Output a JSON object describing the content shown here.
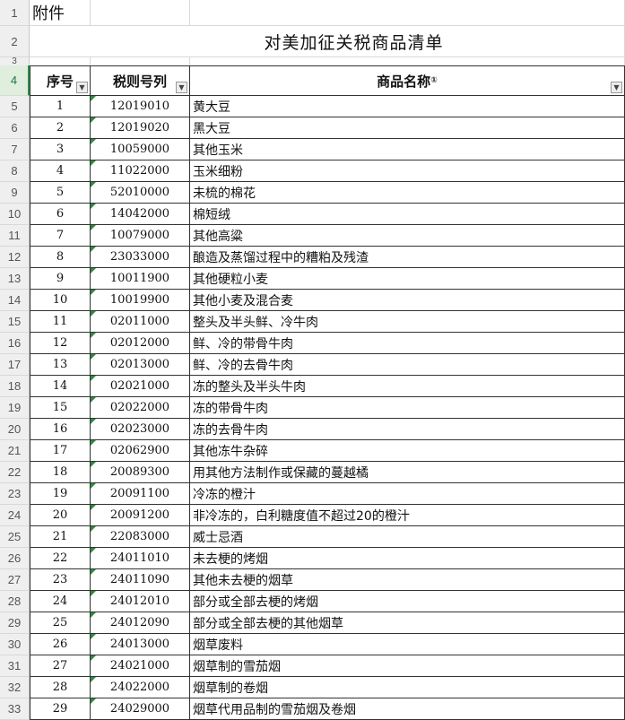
{
  "sheet": {
    "attachment_label": "附件",
    "title": "对美加征关税商品清单",
    "headers": {
      "seq": "序号",
      "code": "税则号列",
      "name": "商品名称",
      "footnote": "①"
    },
    "row_numbers": [
      "1",
      "2",
      "3",
      "4",
      "5",
      "6",
      "7",
      "8",
      "9",
      "10",
      "11",
      "12",
      "13",
      "14",
      "15",
      "16",
      "17",
      "18",
      "19",
      "20",
      "21",
      "22",
      "23",
      "24",
      "25",
      "26",
      "27",
      "28",
      "29",
      "30",
      "31",
      "32",
      "33"
    ],
    "rows": [
      {
        "seq": "1",
        "code": "12019010",
        "name": "黄大豆"
      },
      {
        "seq": "2",
        "code": "12019020",
        "name": "黑大豆"
      },
      {
        "seq": "3",
        "code": "10059000",
        "name": "其他玉米"
      },
      {
        "seq": "4",
        "code": "11022000",
        "name": "玉米细粉"
      },
      {
        "seq": "5",
        "code": "52010000",
        "name": "未梳的棉花"
      },
      {
        "seq": "6",
        "code": "14042000",
        "name": "棉短绒"
      },
      {
        "seq": "7",
        "code": "10079000",
        "name": "其他高粱"
      },
      {
        "seq": "8",
        "code": "23033000",
        "name": "酿造及蒸馏过程中的糟粕及残渣"
      },
      {
        "seq": "9",
        "code": "10011900",
        "name": "其他硬粒小麦"
      },
      {
        "seq": "10",
        "code": "10019900",
        "name": "其他小麦及混合麦"
      },
      {
        "seq": "11",
        "code": "02011000",
        "name": "整头及半头鲜、冷牛肉"
      },
      {
        "seq": "12",
        "code": "02012000",
        "name": "鲜、冷的带骨牛肉"
      },
      {
        "seq": "13",
        "code": "02013000",
        "name": "鲜、冷的去骨牛肉"
      },
      {
        "seq": "14",
        "code": "02021000",
        "name": "冻的整头及半头牛肉"
      },
      {
        "seq": "15",
        "code": "02022000",
        "name": "冻的带骨牛肉"
      },
      {
        "seq": "16",
        "code": "02023000",
        "name": "冻的去骨牛肉"
      },
      {
        "seq": "17",
        "code": "02062900",
        "name": "其他冻牛杂碎"
      },
      {
        "seq": "18",
        "code": "20089300",
        "name": "用其他方法制作或保藏的蔓越橘"
      },
      {
        "seq": "19",
        "code": "20091100",
        "name": "冷冻的橙汁"
      },
      {
        "seq": "20",
        "code": "20091200",
        "name": "非冷冻的，白利糖度值不超过20的橙汁"
      },
      {
        "seq": "21",
        "code": "22083000",
        "name": "威士忌酒"
      },
      {
        "seq": "22",
        "code": "24011010",
        "name": "未去梗的烤烟"
      },
      {
        "seq": "23",
        "code": "24011090",
        "name": "其他未去梗的烟草"
      },
      {
        "seq": "24",
        "code": "24012010",
        "name": "部分或全部去梗的烤烟"
      },
      {
        "seq": "25",
        "code": "24012090",
        "name": "部分或全部去梗的其他烟草"
      },
      {
        "seq": "26",
        "code": "24013000",
        "name": "烟草废料"
      },
      {
        "seq": "27",
        "code": "24021000",
        "name": "烟草制的雪茄烟"
      },
      {
        "seq": "28",
        "code": "24022000",
        "name": "烟草制的卷烟"
      },
      {
        "seq": "29",
        "code": "24029000",
        "name": "烟草代用品制的雪茄烟及卷烟"
      }
    ]
  },
  "colors": {
    "selected_row_header": "#dfeedd",
    "error_triangle": "#2e8b3e"
  },
  "icons": {
    "filter": "filter-dropdown-icon"
  }
}
